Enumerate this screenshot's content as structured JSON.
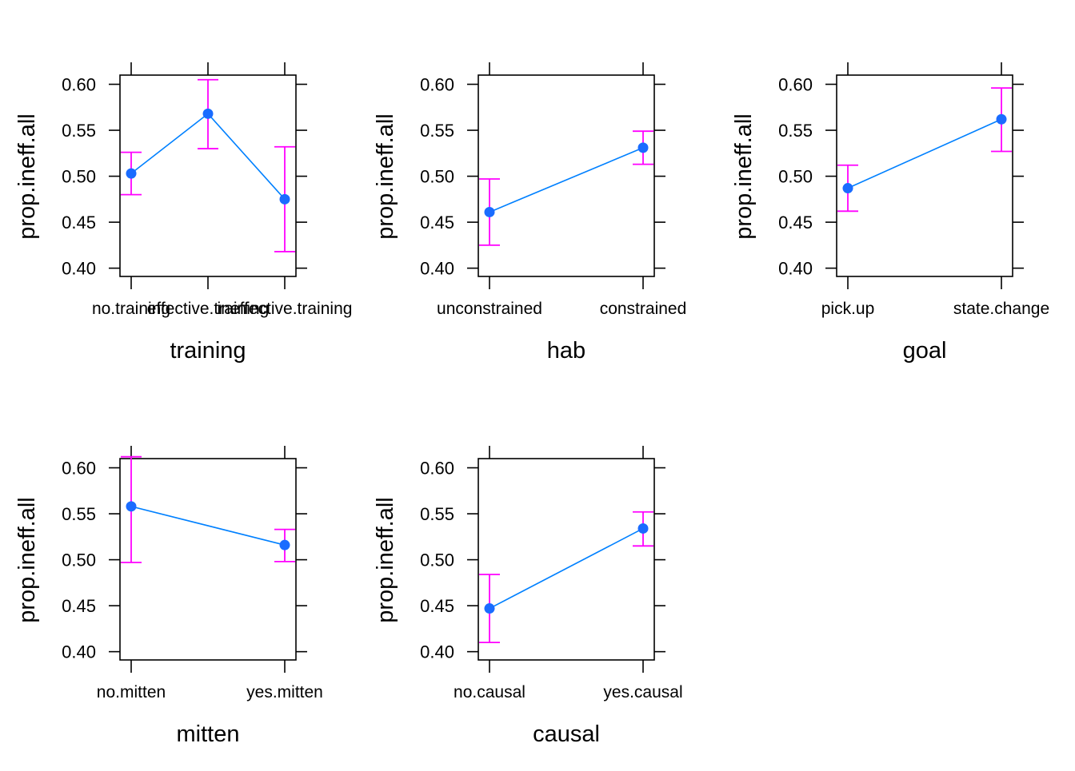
{
  "colors": {
    "line": "#0080ff",
    "point": "#1a6cff",
    "errorbar": "#ff00ff",
    "frame": "#000000"
  },
  "chart_data": [
    {
      "type": "line",
      "xlabel": "training",
      "ylabel": "prop.ineff.all",
      "categories": [
        "no.training",
        "effective.training",
        "ineffective.training"
      ],
      "values": [
        0.503,
        0.568,
        0.475
      ],
      "lower": [
        0.48,
        0.53,
        0.418
      ],
      "upper": [
        0.526,
        0.605,
        0.532
      ],
      "yticks": [
        "0.40",
        "0.45",
        "0.50",
        "0.55",
        "0.60"
      ],
      "ylim": [
        0.391,
        0.61
      ]
    },
    {
      "type": "line",
      "xlabel": "hab",
      "ylabel": "prop.ineff.all",
      "categories": [
        "unconstrained",
        "constrained"
      ],
      "values": [
        0.461,
        0.531
      ],
      "lower": [
        0.425,
        0.513
      ],
      "upper": [
        0.497,
        0.549
      ],
      "yticks": [
        "0.40",
        "0.45",
        "0.50",
        "0.55",
        "0.60"
      ],
      "ylim": [
        0.391,
        0.61
      ]
    },
    {
      "type": "line",
      "xlabel": "goal",
      "ylabel": "prop.ineff.all",
      "categories": [
        "pick.up",
        "state.change"
      ],
      "values": [
        0.487,
        0.562
      ],
      "lower": [
        0.462,
        0.527
      ],
      "upper": [
        0.512,
        0.596
      ],
      "yticks": [
        "0.40",
        "0.45",
        "0.50",
        "0.55",
        "0.60"
      ],
      "ylim": [
        0.391,
        0.61
      ]
    },
    {
      "type": "line",
      "xlabel": "mitten",
      "ylabel": "prop.ineff.all",
      "categories": [
        "no.mitten",
        "yes.mitten"
      ],
      "values": [
        0.558,
        0.516
      ],
      "lower": [
        0.497,
        0.498
      ],
      "upper": [
        0.612,
        0.533
      ],
      "yticks": [
        "0.40",
        "0.45",
        "0.50",
        "0.55",
        "0.60"
      ],
      "ylim": [
        0.391,
        0.61
      ]
    },
    {
      "type": "line",
      "xlabel": "causal",
      "ylabel": "prop.ineff.all",
      "categories": [
        "no.causal",
        "yes.causal"
      ],
      "values": [
        0.447,
        0.534
      ],
      "lower": [
        0.41,
        0.515
      ],
      "upper": [
        0.484,
        0.552
      ],
      "yticks": [
        "0.40",
        "0.45",
        "0.50",
        "0.55",
        "0.60"
      ],
      "ylim": [
        0.391,
        0.61
      ]
    }
  ]
}
